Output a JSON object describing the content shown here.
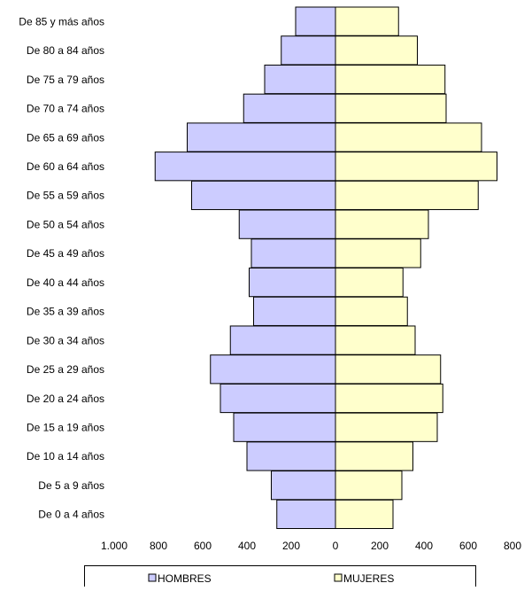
{
  "chart_data": {
    "type": "bar",
    "orientation": "horizontal",
    "subtype": "population-pyramid",
    "categories": [
      "De 0 a 4 años",
      "De 5 a 9 años",
      "De 10 a 14 años",
      "De 15 a 19 años",
      "De 20 a 24 años",
      "De 25 a 29 años",
      "De 30 a 34 años",
      "De 35 a 39 años",
      "De 40 a 44 años",
      "De 45 a 49 años",
      "De 50 a 54 años",
      "De 55 a 59 años",
      "De 60 a 64 años",
      "De 65 a 69 años",
      "De 70 a 74 años",
      "De 75 a 79 años",
      "De 80 a 84 años",
      "De 85 y más años"
    ],
    "series": [
      {
        "name": "HOMBRES",
        "color": "#ccccff",
        "side": "left",
        "values": [
          265,
          290,
          400,
          460,
          520,
          565,
          475,
          370,
          390,
          380,
          435,
          650,
          815,
          670,
          415,
          320,
          245,
          180
        ]
      },
      {
        "name": "MUJERES",
        "color": "#ffffcc",
        "side": "right",
        "values": [
          260,
          300,
          350,
          460,
          485,
          475,
          360,
          325,
          305,
          385,
          420,
          645,
          730,
          660,
          500,
          495,
          370,
          285
        ]
      }
    ],
    "xlim": [
      -1000,
      800
    ],
    "xticks": [
      -1000,
      -800,
      -600,
      -400,
      -200,
      0,
      200,
      400,
      600,
      800
    ],
    "xtick_labels": [
      "1.000",
      "800",
      "600",
      "400",
      "200",
      "0",
      "200",
      "400",
      "600",
      "800"
    ],
    "title": "",
    "xlabel": "",
    "ylabel": "",
    "grid": false,
    "legend_position": "bottom"
  }
}
